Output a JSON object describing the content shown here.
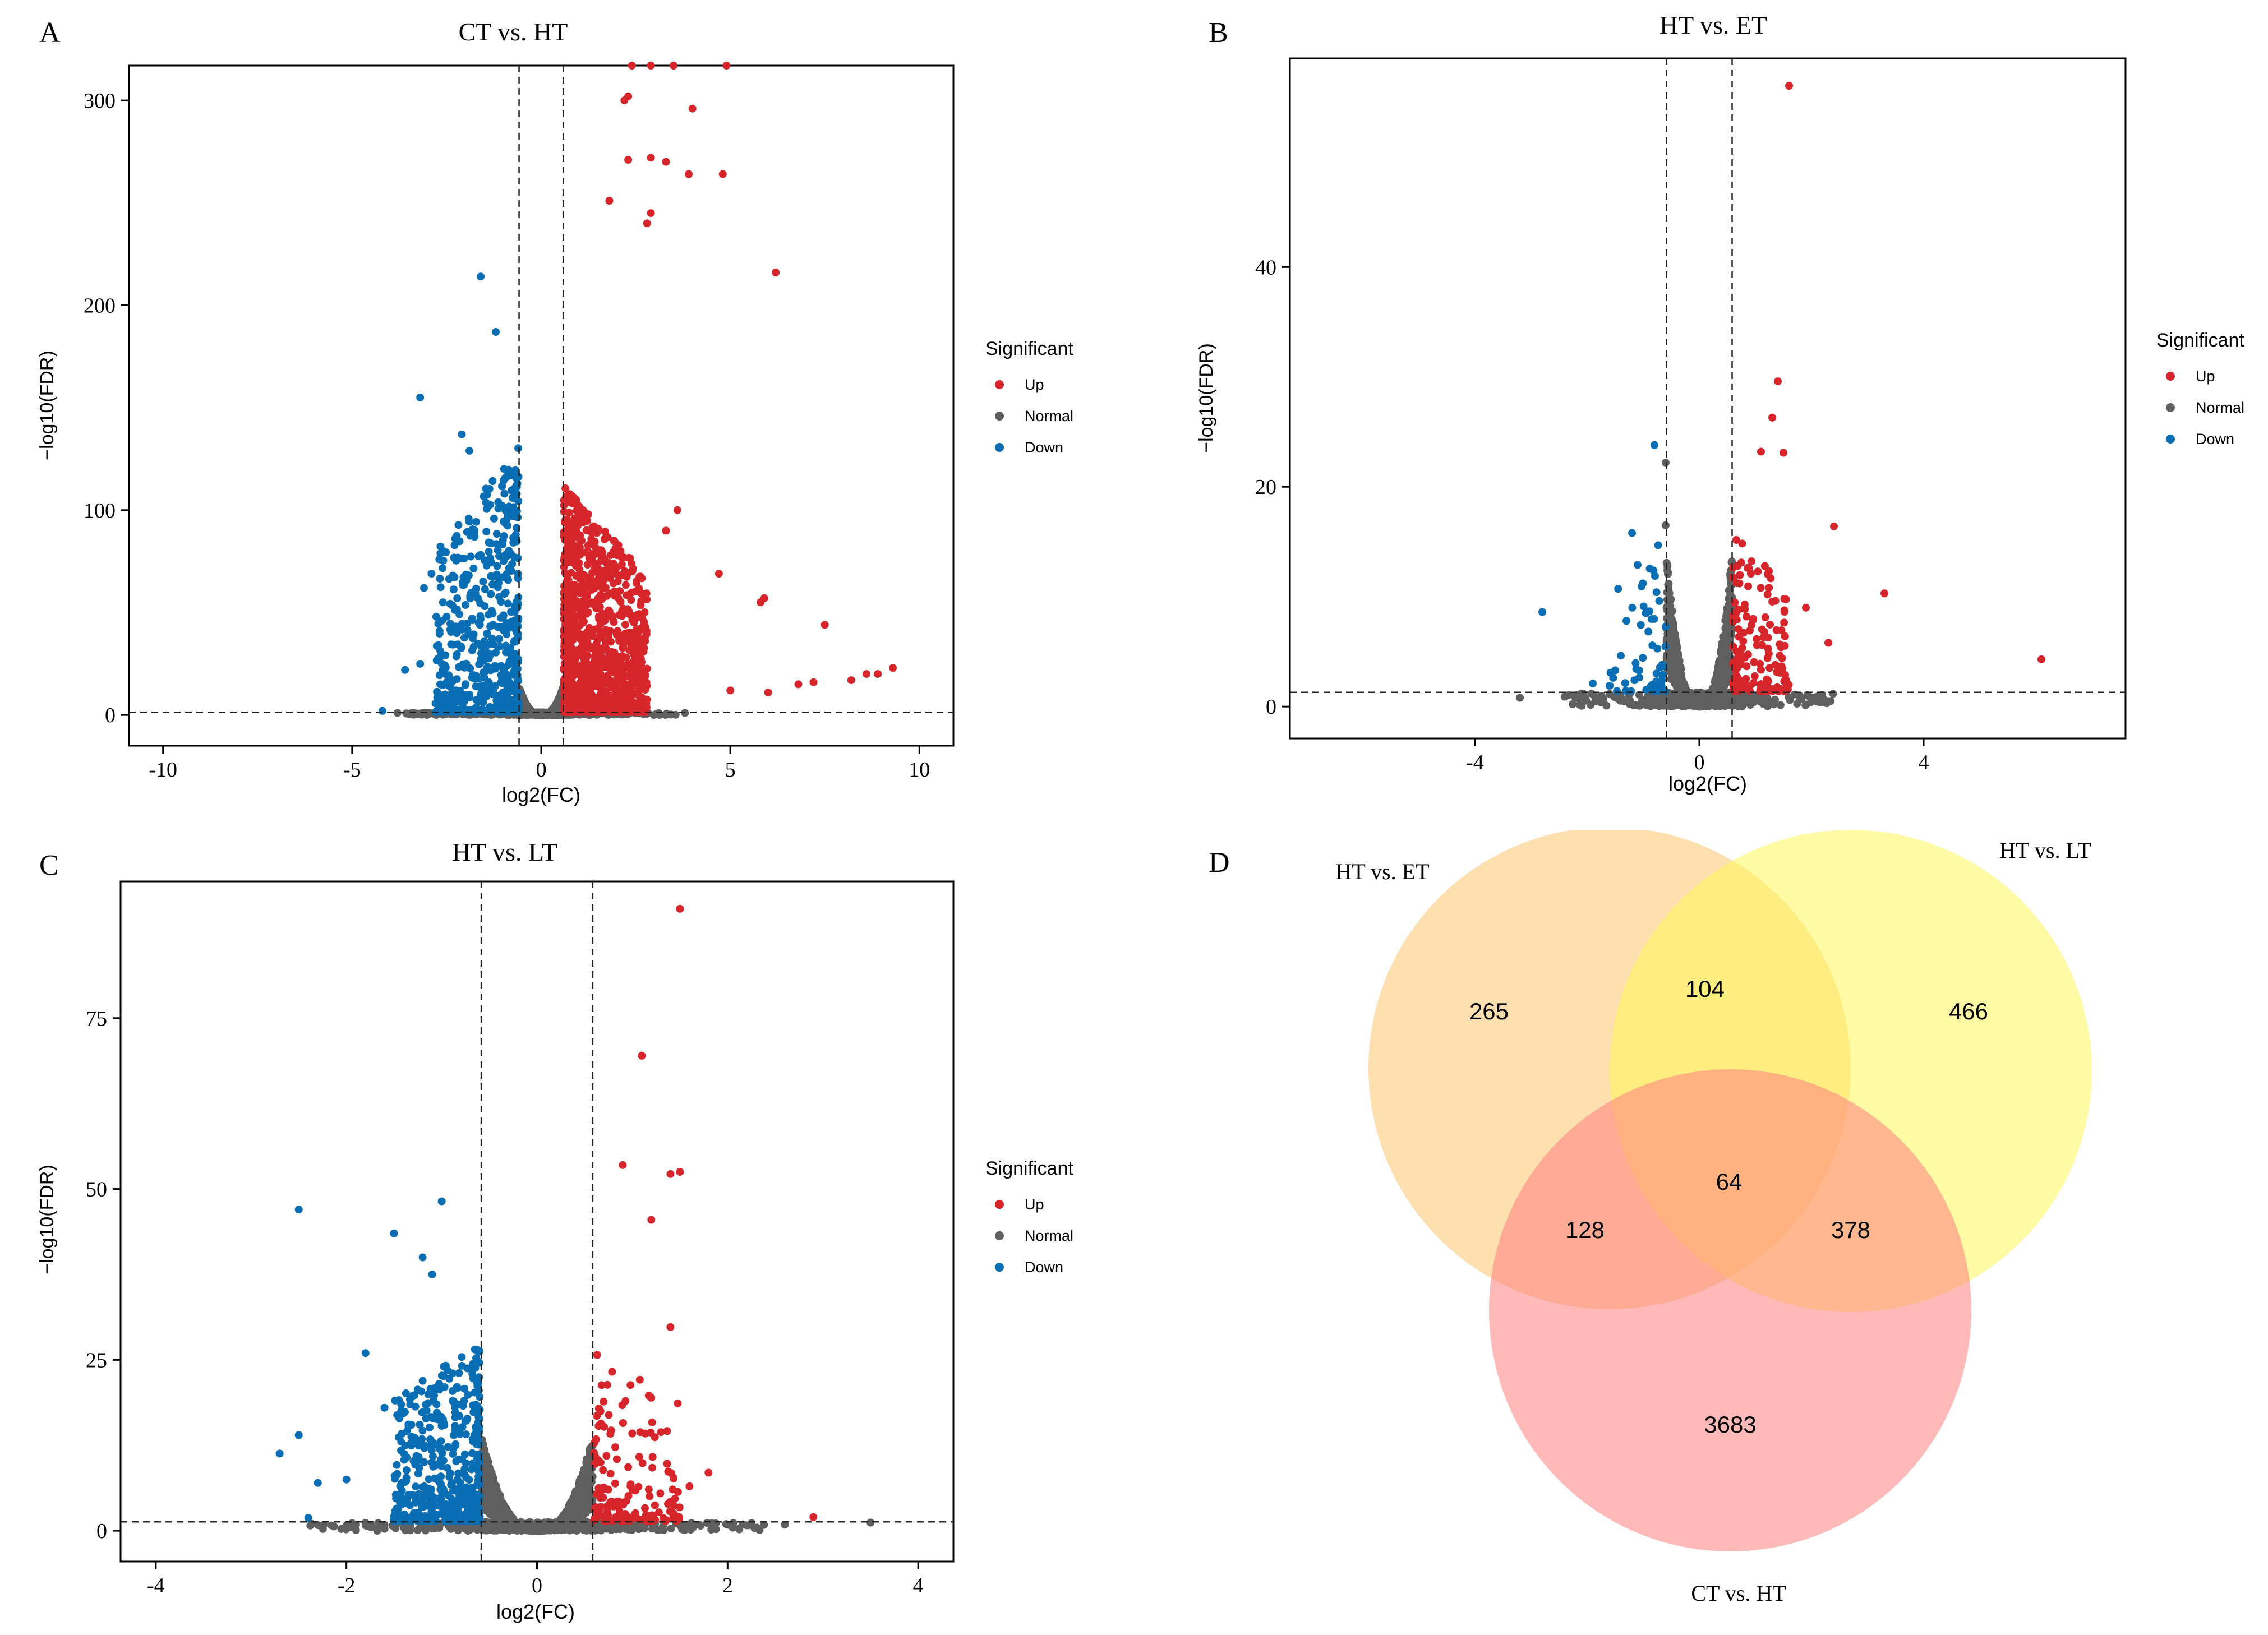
{
  "figure": {
    "panel_letters": [
      "A",
      "B",
      "C",
      "D"
    ]
  },
  "colors": {
    "up": "#D7262B",
    "normal": "#5F5F5F",
    "down": "#0A6EB4",
    "et": "#FBC56F",
    "lt": "#FFF75A",
    "ct": "#FF8080"
  },
  "chart_data": [
    {
      "type": "scatter",
      "panel": "A",
      "title": "CT vs. HT",
      "xlabel": "log2(FC)",
      "ylabel": "−log10(FDR)",
      "xlim": [
        -10.9,
        10.9
      ],
      "ylim": [
        -15,
        317
      ],
      "xticks": [
        -10,
        -5,
        0,
        5,
        10
      ],
      "xtick_labels": [
        "-10",
        "-5",
        "0",
        "5",
        "10"
      ],
      "yticks": [
        0,
        100,
        200,
        300
      ],
      "ytick_labels": [
        "0",
        "100",
        "200",
        "300"
      ],
      "vlines": [
        -0.585,
        0.585
      ],
      "hline": 1.3,
      "legend": {
        "title": "Significant",
        "entries": [
          "Up",
          "Normal",
          "Down"
        ],
        "position": "right"
      },
      "cloud": {
        "up_count": 1300,
        "down_count": 560,
        "normal_count": 2200,
        "up_max": 110,
        "down_max": 130,
        "normal_max": 14
      },
      "points": {
        "up": [
          [
            2.4,
            317
          ],
          [
            2.9,
            317
          ],
          [
            3.5,
            317
          ],
          [
            4.9,
            317
          ],
          [
            2.3,
            302
          ],
          [
            2.2,
            300
          ],
          [
            4.0,
            296
          ],
          [
            2.3,
            271
          ],
          [
            2.9,
            272
          ],
          [
            3.3,
            270
          ],
          [
            4.8,
            264
          ],
          [
            3.9,
            264
          ],
          [
            2.9,
            245
          ],
          [
            2.8,
            240
          ],
          [
            1.8,
            251
          ],
          [
            6.2,
            216
          ],
          [
            5.9,
            57
          ],
          [
            5.8,
            55
          ],
          [
            4.7,
            69
          ],
          [
            7.5,
            44
          ],
          [
            9.3,
            23
          ],
          [
            8.9,
            20
          ],
          [
            8.6,
            20
          ],
          [
            7.2,
            16
          ],
          [
            6.8,
            15
          ],
          [
            5.0,
            12
          ],
          [
            6.0,
            11
          ],
          [
            8.2,
            17
          ],
          [
            3.6,
            100
          ],
          [
            3.3,
            90
          ]
        ],
        "down": [
          [
            -1.6,
            214
          ],
          [
            -1.2,
            187
          ],
          [
            -3.2,
            155
          ],
          [
            -1.9,
            129
          ],
          [
            -2.1,
            137
          ],
          [
            -2.9,
            69
          ],
          [
            -3.1,
            62
          ],
          [
            -2.6,
            55
          ],
          [
            -3.2,
            25
          ],
          [
            -3.6,
            22
          ],
          [
            -4.2,
            2
          ],
          [
            -2.5,
            48
          ]
        ],
        "normal": [
          [
            -3.8,
            1.0
          ],
          [
            3.8,
            1.0
          ]
        ]
      }
    },
    {
      "type": "scatter",
      "panel": "B",
      "title": "HT vs. ET",
      "xlabel": "log2(FC)",
      "ylabel": "−log10(FDR)",
      "xlim": [
        -7.3,
        7.6
      ],
      "ylim": [
        -2.9,
        59
      ],
      "xticks": [
        -4,
        0,
        4
      ],
      "xtick_labels": [
        "-4",
        "0",
        "4"
      ],
      "yticks": [
        0,
        20,
        40
      ],
      "ytick_labels": [
        "0",
        "20",
        "40"
      ],
      "vlines": [
        -0.585,
        0.585
      ],
      "hline": 1.3,
      "legend": {
        "title": "Significant",
        "entries": [
          "Up",
          "Normal",
          "Down"
        ],
        "position": "right"
      },
      "cloud": {
        "up_count": 170,
        "down_count": 55,
        "normal_count": 1500,
        "up_max": 15,
        "down_max": 14,
        "normal_max": 14
      },
      "points": {
        "up": [
          [
            1.6,
            56.5
          ],
          [
            1.4,
            29.6
          ],
          [
            1.3,
            26.3
          ],
          [
            1.1,
            23.2
          ],
          [
            1.5,
            23.1
          ],
          [
            2.4,
            16.4
          ],
          [
            3.3,
            10.3
          ],
          [
            6.1,
            4.3
          ],
          [
            2.3,
            5.8
          ],
          [
            1.9,
            9.0
          ]
        ],
        "down": [
          [
            -0.8,
            23.8
          ],
          [
            -2.8,
            8.6
          ],
          [
            -1.2,
            15.8
          ],
          [
            -1.1,
            12.9
          ],
          [
            -1.3,
            7.8
          ],
          [
            -1.5,
            3.3
          ],
          [
            -1.9,
            2.1
          ]
        ],
        "normal": [
          [
            -0.6,
            22.2
          ],
          [
            -0.6,
            16.5
          ],
          [
            -3.2,
            0.8
          ],
          [
            -2.1,
            1.2
          ],
          [
            -2.4,
            0.9
          ],
          [
            2.1,
            0.9
          ]
        ]
      }
    },
    {
      "type": "scatter",
      "panel": "C",
      "title": "HT vs. LT",
      "xlabel": "log2(FC)",
      "ylabel": "−log10(FDR)",
      "xlim": [
        -4.37,
        4.37
      ],
      "ylim": [
        -4.5,
        95
      ],
      "xticks": [
        -4,
        -2,
        0,
        2,
        4
      ],
      "xtick_labels": [
        "-4",
        "-2",
        "0",
        "2",
        "4"
      ],
      "yticks": [
        0,
        25,
        50,
        75
      ],
      "ytick_labels": [
        "0",
        "25",
        "50",
        "75"
      ],
      "vlines": [
        -0.585,
        0.585
      ],
      "hline": 1.3,
      "legend": {
        "title": "Significant",
        "entries": [
          "Up",
          "Normal",
          "Down"
        ],
        "position": "right"
      },
      "cloud": {
        "up_count": 160,
        "down_count": 520,
        "normal_count": 1600,
        "up_max": 25,
        "down_max": 26,
        "normal_max": 14
      },
      "points": {
        "up": [
          [
            1.5,
            91.0
          ],
          [
            1.1,
            69.5
          ],
          [
            0.9,
            53.5
          ],
          [
            1.4,
            52.2
          ],
          [
            1.5,
            52.5
          ],
          [
            1.2,
            45.5
          ],
          [
            1.4,
            29.8
          ],
          [
            1.8,
            8.5
          ],
          [
            2.9,
            2.0
          ],
          [
            1.6,
            6.5
          ]
        ],
        "down": [
          [
            -2.5,
            47.0
          ],
          [
            -1.0,
            48.2
          ],
          [
            -1.5,
            43.5
          ],
          [
            -1.8,
            26.0
          ],
          [
            -2.7,
            11.3
          ],
          [
            -2.5,
            14.0
          ],
          [
            -2.3,
            7.0
          ],
          [
            -2.0,
            7.5
          ],
          [
            -1.6,
            18.0
          ],
          [
            -1.2,
            40.0
          ],
          [
            -1.1,
            37.5
          ],
          [
            -2.4,
            1.9
          ]
        ],
        "normal": [
          [
            2.2,
            0.8
          ],
          [
            2.6,
            0.9
          ],
          [
            3.5,
            1.2
          ],
          [
            -2.0,
            0.8
          ],
          [
            -1.6,
            0.9
          ]
        ]
      }
    },
    {
      "type": "venn",
      "panel": "D",
      "sets": [
        "HT vs. ET",
        "HT vs. LT",
        "CT vs. HT"
      ],
      "regions": {
        "et_only": 265,
        "et_lt": 104,
        "lt_only": 466,
        "et_ct": 128,
        "all": 64,
        "lt_ct": 378,
        "ct_only": 3683
      }
    }
  ]
}
